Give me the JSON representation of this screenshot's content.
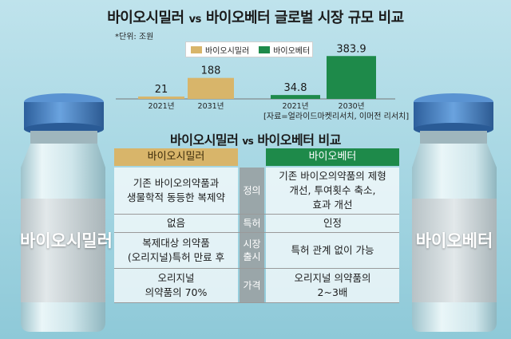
{
  "title": {
    "left": "바이오시밀러",
    "vs": "vs",
    "right": "바이오베터 글로벌 시장 규모 비교"
  },
  "unit_note": "*단위: 조원",
  "source_note": "[자료=얼라이드마켓리서치, 이머전 리서치]",
  "colors": {
    "biosimilar": "#d8b56a",
    "biobetter": "#1e8a4a",
    "mid_col": "#9aa6a9",
    "vial_cap": "#3f7fc4"
  },
  "chart_data": {
    "type": "bar",
    "title": "바이오시밀러 vs 바이오베터 글로벌 시장 규모 비교",
    "legend_position": "top-center",
    "grid": false,
    "ylim": [
      0,
      400
    ],
    "series": [
      {
        "name": "바이오시밀러",
        "color": "#d8b56a",
        "categories": [
          "2021년",
          "2031년"
        ],
        "values": [
          21,
          188
        ],
        "value_labels": [
          "21",
          "188"
        ]
      },
      {
        "name": "바이오베터",
        "color": "#1e8a4a",
        "categories": [
          "2021년",
          "2030년"
        ],
        "values": [
          34.8,
          383.9
        ],
        "value_labels": [
          "34.8",
          "383.9"
        ]
      }
    ]
  },
  "compare": {
    "title_left": "바이오시밀러",
    "title_vs": "vs",
    "title_right": "바이오베터 비교",
    "header_left": "바이오시밀러",
    "header_right": "바이오베터",
    "rows": [
      {
        "left": [
          "기존 바이오의약품과",
          "생물학적 동등한 복제약"
        ],
        "mid": [
          "정의"
        ],
        "right": [
          "기존 바이오의약품의 제형",
          "개선, 투여횟수 축소,",
          "효과 개선"
        ]
      },
      {
        "left": [
          "없음"
        ],
        "mid": [
          "특허"
        ],
        "right": [
          "인정"
        ]
      },
      {
        "left": [
          "복제대상 의약품",
          "(오리지널)특허 만료 후"
        ],
        "mid": [
          "시장",
          "출시"
        ],
        "right": [
          "특허 관계 없이 가능"
        ]
      },
      {
        "left": [
          "오리지널",
          "의약품의 70%"
        ],
        "mid": [
          "가격"
        ],
        "right": [
          "오리지널 의약품의",
          "2~3배"
        ]
      }
    ]
  },
  "vials": {
    "left_label": "바이오시밀러",
    "right_label": "바이오베터"
  }
}
